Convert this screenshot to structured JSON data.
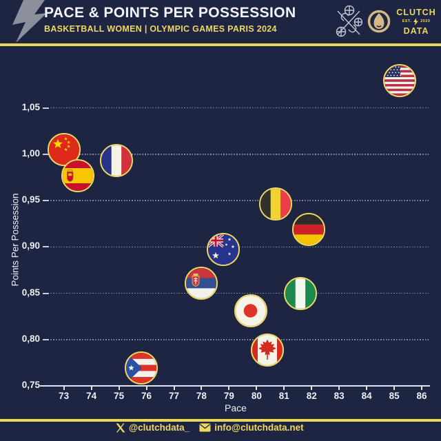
{
  "header": {
    "title": "PACE & POINTS PER POSSESSION",
    "subtitle": "BASKETBALL WOMEN | OLYMPIC GAMES PARIS 2024",
    "brand": {
      "line1": "CLUTCH",
      "est": "EST.",
      "year": "2020",
      "line2": "DATA"
    }
  },
  "footer": {
    "twitter": "@clutchdata_",
    "email": "info@clutchdata.net"
  },
  "colors": {
    "background": "#1D2543",
    "accent_yellow": "#E9D662",
    "marker_border": "#EED964",
    "text_white": "#F4F5F8",
    "grid": "#98A1B6",
    "bolt_gray": "#8B8F9B",
    "olympic_gold": "#D3B986"
  },
  "icons": [
    "lightning-bolt-icon",
    "crossed-basketballs-icon",
    "paris-2024-flame-icon",
    "x-twitter-icon",
    "envelope-icon"
  ],
  "chart_data": {
    "type": "scatter",
    "title": "PACE & POINTS PER POSSESSION",
    "subtitle": "BASKETBALL WOMEN | OLYMPIC GAMES PARIS 2024",
    "xlabel": "Pace",
    "ylabel": "Points Per Possession",
    "x_range": [
      72.2,
      86.3
    ],
    "y_range": [
      0.735,
      1.105
    ],
    "x_ticks": [
      73,
      74,
      75,
      76,
      77,
      78,
      79,
      80,
      81,
      82,
      83,
      84,
      85,
      86
    ],
    "y_ticks": [
      {
        "value": 0.75,
        "label": "0,75"
      },
      {
        "value": 0.8,
        "label": "0,80"
      },
      {
        "value": 0.85,
        "label": "0,85"
      },
      {
        "value": 0.9,
        "label": "0,90"
      },
      {
        "value": 0.95,
        "label": "0,95"
      },
      {
        "value": 1.0,
        "label": "1,00"
      },
      {
        "value": 1.05,
        "label": "1,05"
      }
    ],
    "grid": "horizontal-dotted",
    "legend": "none",
    "marker_style": "circular country flag with gold border",
    "points": [
      {
        "team": "USA",
        "flag": "us",
        "pace": 85.2,
        "ppp": 1.079
      },
      {
        "team": "China",
        "flag": "cn",
        "pace": 73.0,
        "ppp": 1.005
      },
      {
        "team": "Spain",
        "flag": "es",
        "pace": 73.5,
        "ppp": 0.977
      },
      {
        "team": "France",
        "flag": "fr",
        "pace": 74.9,
        "ppp": 0.993
      },
      {
        "team": "Belgium",
        "flag": "be",
        "pace": 80.7,
        "ppp": 0.946
      },
      {
        "team": "Germany",
        "flag": "de",
        "pace": 81.9,
        "ppp": 0.919
      },
      {
        "team": "Australia",
        "flag": "au",
        "pace": 78.8,
        "ppp": 0.897
      },
      {
        "team": "Serbia",
        "flag": "rs",
        "pace": 78.0,
        "ppp": 0.861
      },
      {
        "team": "Nigeria",
        "flag": "ng",
        "pace": 81.6,
        "ppp": 0.85
      },
      {
        "team": "Japan",
        "flag": "jp",
        "pace": 79.8,
        "ppp": 0.831
      },
      {
        "team": "Canada",
        "flag": "ca",
        "pace": 80.4,
        "ppp": 0.789
      },
      {
        "team": "Puerto Rico",
        "flag": "pr",
        "pace": 75.8,
        "ppp": 0.769
      }
    ]
  }
}
